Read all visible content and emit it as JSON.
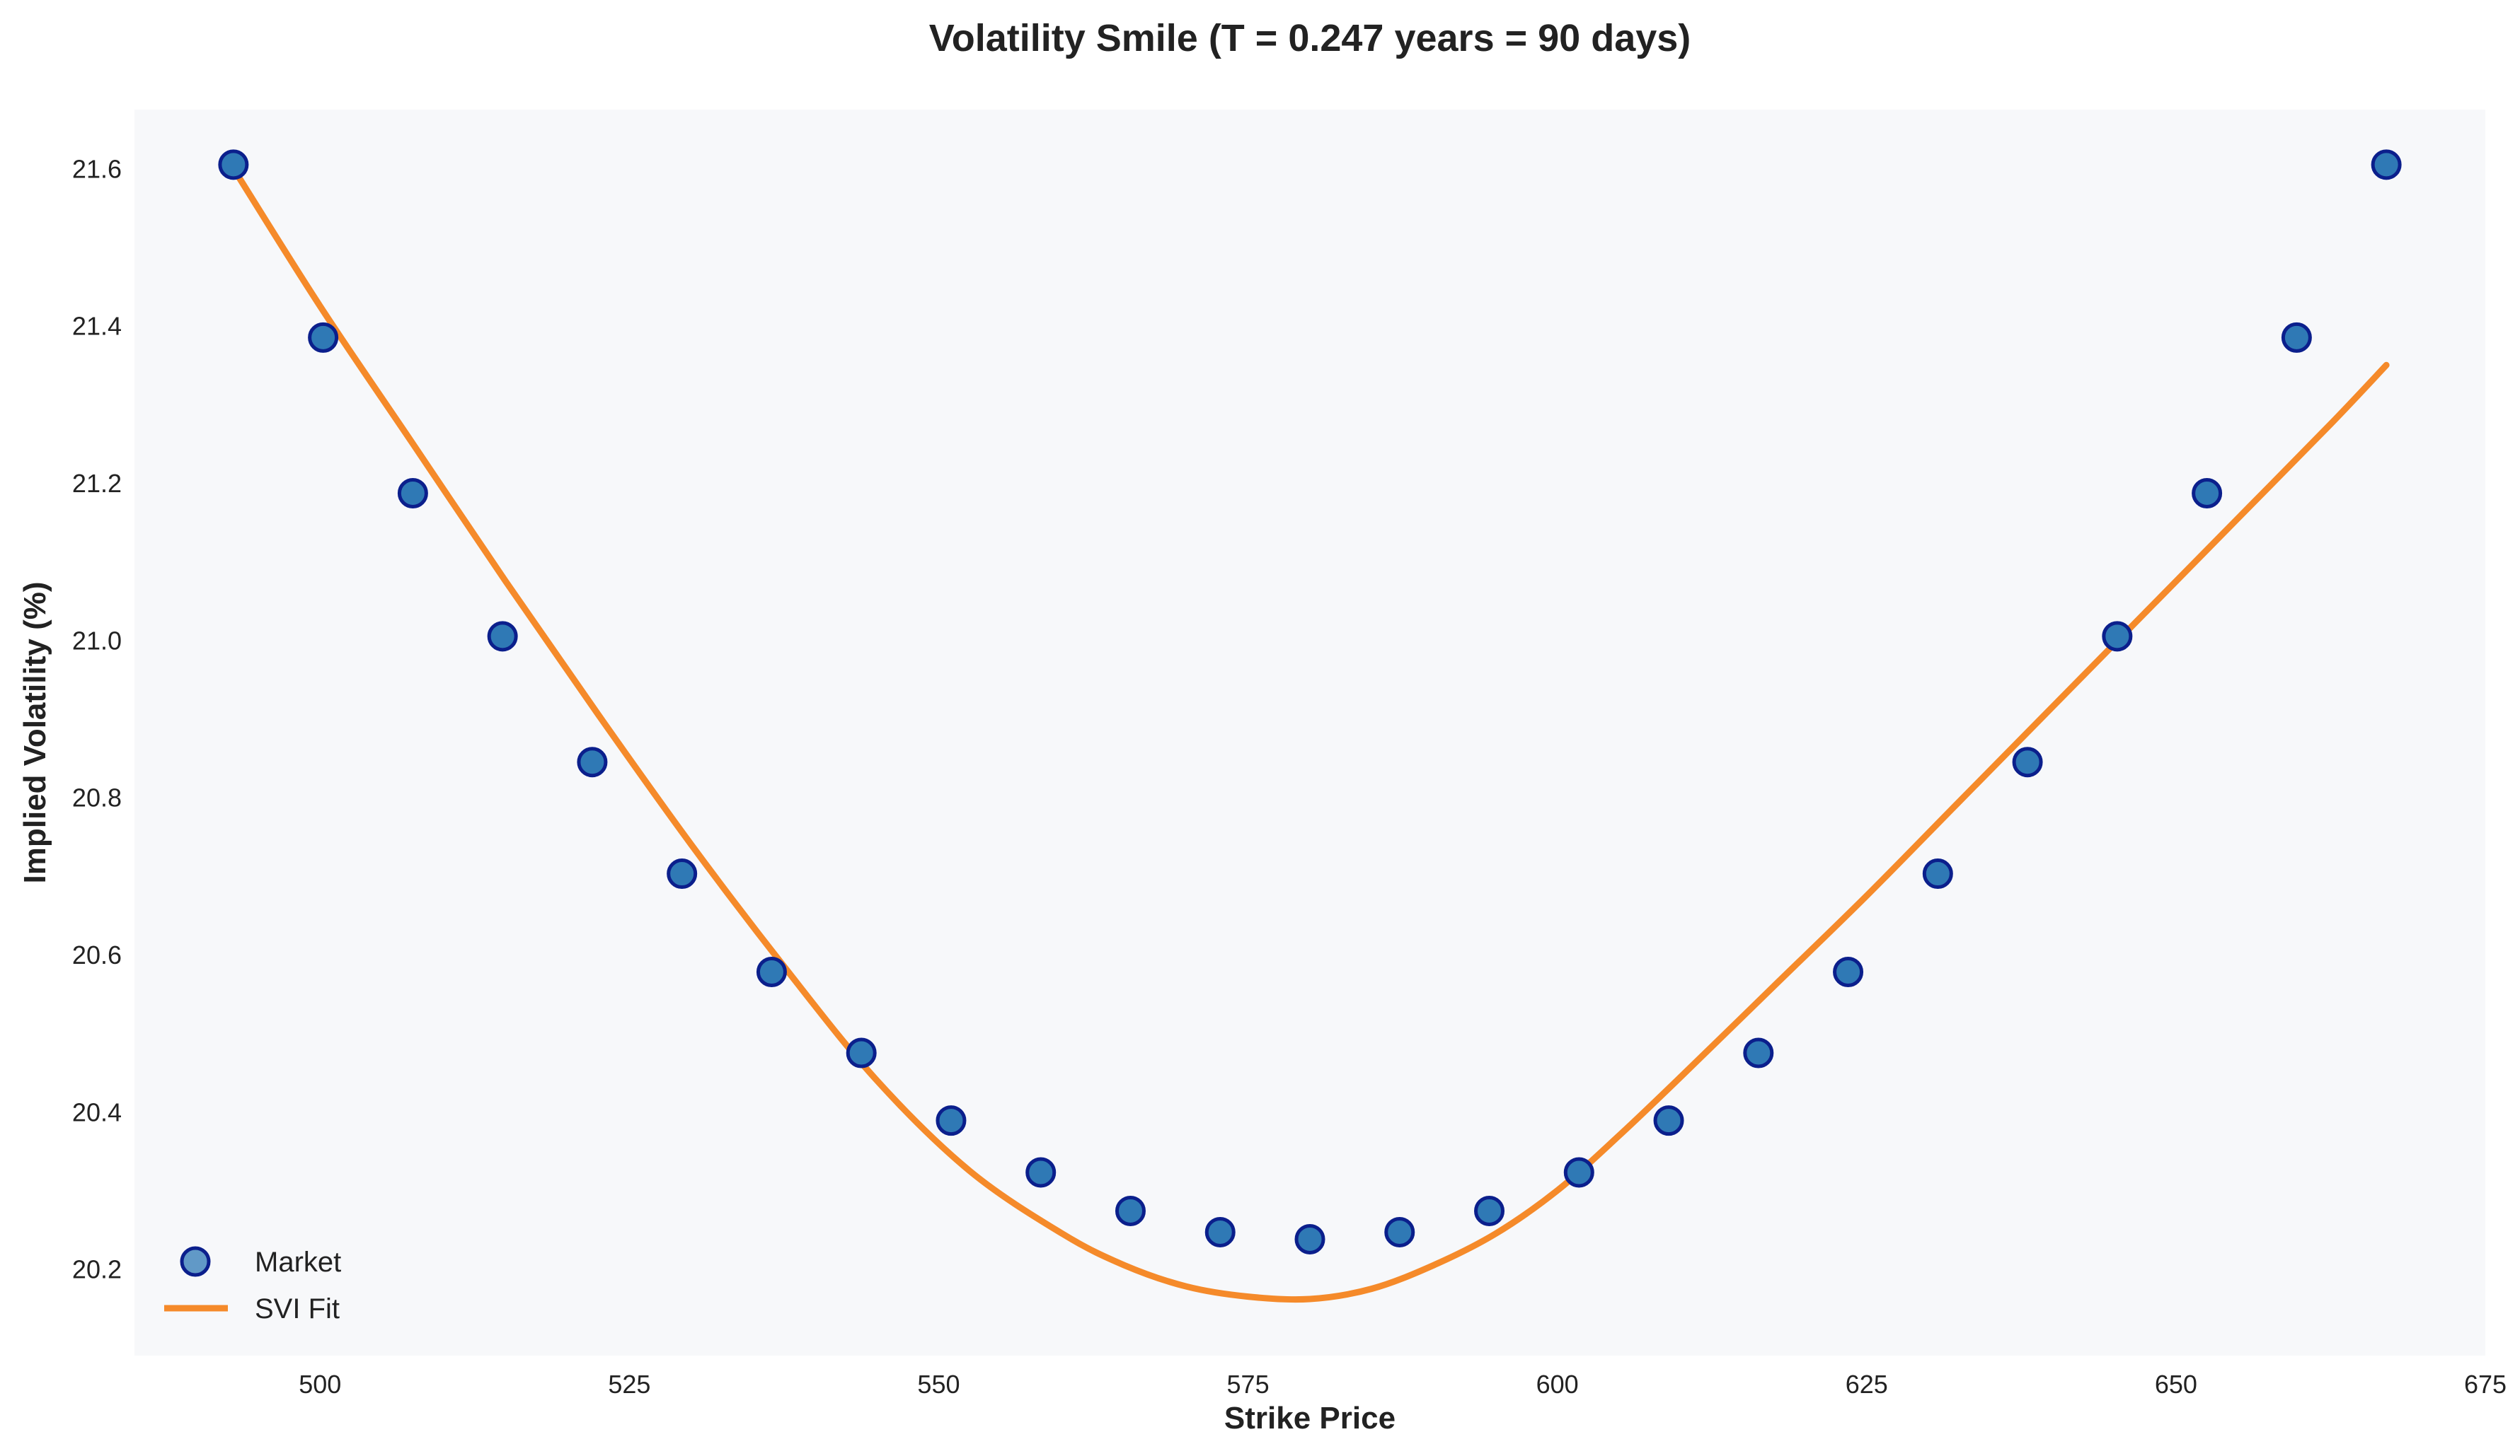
{
  "chart_data": {
    "type": "scatter",
    "title": "Volatility Smile (T = 0.247 years = 90 days)",
    "xlabel": "Strike Price",
    "ylabel": "Implied Volatility (%)",
    "xlim": [
      485,
      675
    ],
    "ylim": [
      20.09,
      21.675
    ],
    "xticks": [
      500,
      525,
      550,
      575,
      600,
      625,
      650,
      675
    ],
    "yticks": [
      20.2,
      20.4,
      20.6,
      20.8,
      21.0,
      21.2,
      21.4,
      21.6
    ],
    "grid": false,
    "legend_position": "lower-left",
    "colors": {
      "plot_background": "#f7f8fa",
      "marker_fill": "#2f79b5",
      "marker_edge": "#0b1f8c",
      "fit_line": "#f58a2a"
    },
    "series": [
      {
        "name": "Market",
        "kind": "scatter",
        "x": [
          493.0,
          500.25,
          507.5,
          514.75,
          522.0,
          529.25,
          536.5,
          543.75,
          551.0,
          558.25,
          565.5,
          572.75,
          580.0,
          587.25,
          594.5,
          601.75,
          609.0,
          616.25,
          623.5,
          630.75,
          638.0,
          645.25,
          652.5,
          659.75,
          667.0
        ],
        "y": [
          21.605,
          21.385,
          21.187,
          21.005,
          20.845,
          20.703,
          20.578,
          20.475,
          20.389,
          20.323,
          20.274,
          20.247,
          20.238,
          20.247,
          20.274,
          20.323,
          20.389,
          20.475,
          20.578,
          20.703,
          20.845,
          21.005,
          21.187,
          21.385,
          21.605
        ]
      },
      {
        "name": "SVI Fit",
        "kind": "line",
        "x": [
          493,
          500,
          507.5,
          515,
          522.5,
          530,
          537.5,
          545,
          552.5,
          560,
          565,
          570,
          575,
          580,
          585,
          590,
          595,
          600,
          605,
          610,
          617.5,
          625,
          632.5,
          640,
          647.5,
          655,
          662.5,
          667
        ],
        "y": [
          21.6,
          21.425,
          21.25,
          21.075,
          20.905,
          20.74,
          20.585,
          20.44,
          20.325,
          20.245,
          20.205,
          20.178,
          20.165,
          20.162,
          20.175,
          20.205,
          20.245,
          20.3,
          20.37,
          20.445,
          20.56,
          20.675,
          20.795,
          20.915,
          21.035,
          21.155,
          21.275,
          21.35
        ]
      }
    ]
  }
}
